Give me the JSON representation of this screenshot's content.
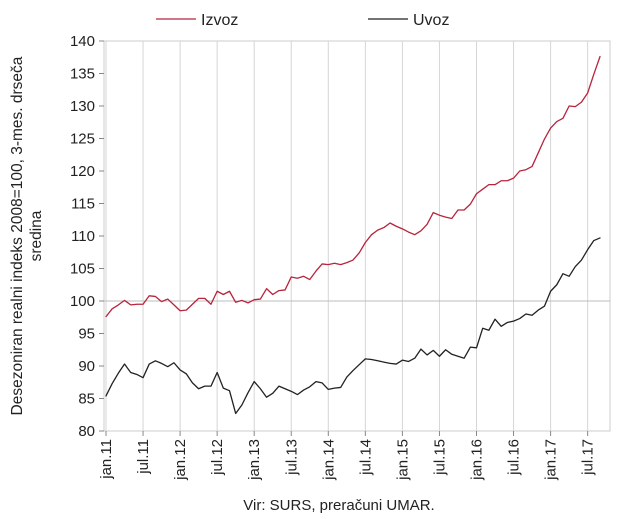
{
  "chart_data": {
    "type": "line",
    "ylabel": "Desezoniran realni indeks 2008=100, 3-mes. drseča sredina",
    "ylim": [
      80,
      140
    ],
    "yticks": [
      80,
      85,
      90,
      95,
      100,
      105,
      110,
      115,
      120,
      125,
      130,
      135,
      140
    ],
    "reference_line": 100,
    "grid": "vertical lines at every tick label",
    "legend": "top",
    "x_start": "jan.11",
    "x_end": "sep.17",
    "x_ticks": [
      "jan.11",
      "jul.11",
      "jan.12",
      "jul.12",
      "jan.13",
      "jul.13",
      "jan.14",
      "jul.14",
      "jan.15",
      "jul.15",
      "jan.16",
      "jul.16",
      "jan.17",
      "jul.17"
    ],
    "series": [
      {
        "name": "Izvoz",
        "color": "#b8243c",
        "values": [
          97.6,
          98.8,
          99.4,
          100.1,
          99.4,
          99.5,
          99.5,
          100.8,
          100.7,
          99.9,
          100.3,
          99.4,
          98.5,
          98.6,
          99.5,
          100.4,
          100.4,
          99.5,
          101.5,
          101.0,
          101.5,
          99.8,
          100.1,
          99.7,
          100.2,
          100.3,
          101.9,
          101.0,
          101.6,
          101.7,
          103.7,
          103.5,
          103.8,
          103.3,
          104.6,
          105.7,
          105.6,
          105.8,
          105.6,
          105.9,
          106.3,
          107.4,
          109.0,
          110.2,
          110.9,
          111.3,
          112.0,
          111.5,
          111.1,
          110.6,
          110.2,
          110.8,
          111.8,
          113.6,
          113.2,
          112.9,
          112.7,
          114.0,
          114.0,
          114.9,
          116.5,
          117.2,
          117.9,
          117.9,
          118.5,
          118.5,
          118.9,
          120.0,
          120.2,
          120.7,
          122.8,
          124.9,
          126.6,
          127.6,
          128.1,
          130.0,
          129.9,
          130.6,
          132.0,
          134.9,
          137.6
        ]
      },
      {
        "name": "Uvoz",
        "color": "#222222",
        "values": [
          85.4,
          87.3,
          88.9,
          90.3,
          89.0,
          88.7,
          88.2,
          90.3,
          90.8,
          90.4,
          89.9,
          90.5,
          89.4,
          88.8,
          87.4,
          86.5,
          86.9,
          86.9,
          89.0,
          86.6,
          86.2,
          82.7,
          84.0,
          85.9,
          87.6,
          86.5,
          85.2,
          85.8,
          86.9,
          86.5,
          86.1,
          85.6,
          86.3,
          86.8,
          87.6,
          87.4,
          86.4,
          86.6,
          86.7,
          88.3,
          89.3,
          90.2,
          91.1,
          91.0,
          90.8,
          90.6,
          90.4,
          90.3,
          90.9,
          90.7,
          91.2,
          92.6,
          91.7,
          92.4,
          91.5,
          92.5,
          91.8,
          91.5,
          91.2,
          92.9,
          92.8,
          95.8,
          95.5,
          97.2,
          96.1,
          96.7,
          96.9,
          97.3,
          98.0,
          97.8,
          98.6,
          99.2,
          101.5,
          102.5,
          104.2,
          103.8,
          105.3,
          106.3,
          107.9,
          109.3,
          109.7
        ]
      }
    ]
  },
  "legend": {
    "items": [
      {
        "label": "Izvoz",
        "color": "#b8243c"
      },
      {
        "label": "Uvoz",
        "color": "#222222"
      }
    ]
  },
  "axis": {
    "ylabel_line1": "Desezoniran realni indeks 2008=100, 3-mes. drseča",
    "ylabel_line2": "sredina"
  },
  "source_note": "Vir: SURS, preračuni UMAR."
}
